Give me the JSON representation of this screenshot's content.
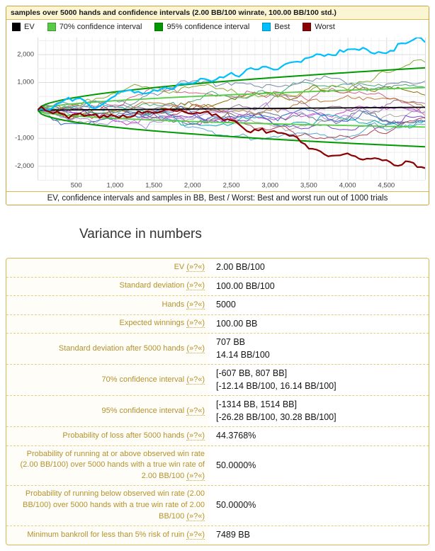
{
  "heading": "Variance in numbers",
  "chart_data": {
    "type": "line",
    "title": "samples over 5000 hands and confidence intervals (2.00 BB/100 winrate, 100.00 BB/100 std.)",
    "caption": "EV, confidence intervals and samples in BB, Best / Worst: Best and worst run out of 1000 trials",
    "winrate_bb100": 2.0,
    "std_bb100": 100.0,
    "hands": 5000,
    "trials": 1000,
    "xlim": [
      0,
      5000
    ],
    "ylim": [
      -2500,
      2600
    ],
    "x_tick_step": 500,
    "x_minor_step": 100,
    "y_tick_step": 1000,
    "y_minor_step": 500,
    "y_tick_labels": [
      2000,
      1000,
      -1000,
      -2000
    ],
    "x_tick_labels": [
      500,
      1000,
      1500,
      2000,
      2500,
      3000,
      3500,
      4000,
      4500
    ],
    "ev_line": {
      "label": "EV",
      "color": "#000000",
      "x": [
        0,
        5000
      ],
      "y": [
        0,
        100
      ]
    },
    "ci70": {
      "label": "70% confidence interval",
      "color": "#55cc44",
      "sigma": 1,
      "end_values": [
        -607,
        807
      ]
    },
    "ci95": {
      "label": "95% confidence interval",
      "color": "#009900",
      "sigma": 2,
      "end_values": [
        -1314,
        1514
      ]
    },
    "best": {
      "label": "Best",
      "color": "#00bfff",
      "end_value": 2430,
      "seed": 101
    },
    "worst": {
      "label": "Worst",
      "color": "#8b0000",
      "end_value": -2080,
      "seed": 202
    },
    "samples": {
      "count": 16,
      "seed_base": 11,
      "points_per_series": 100,
      "colors": [
        "#aaaaaa",
        "#cc44cc",
        "#8a6d00",
        "#00b0b0",
        "#7744cc",
        "#3366cc",
        "#cc6688",
        "#44aa77",
        "#997799",
        "#667788",
        "#bb7733",
        "#55aacc",
        "#aa4455",
        "#7788aa",
        "#88aa33",
        "#aa88dd"
      ]
    },
    "legend": [
      {
        "label": "EV",
        "color": "#000000"
      },
      {
        "label": "70% confidence interval",
        "color": "#55cc44"
      },
      {
        "label": "95% confidence interval",
        "color": "#009900"
      },
      {
        "label": "Best",
        "color": "#00bfff"
      },
      {
        "label": "Worst",
        "color": "#8b0000"
      }
    ]
  },
  "table": {
    "help_label": "(»?«)",
    "rows": [
      {
        "label": "EV",
        "value": "2.00 BB/100"
      },
      {
        "label": "Standard deviation",
        "value": "100.00 BB/100"
      },
      {
        "label": "Hands",
        "value": "5000"
      },
      {
        "label": "Expected winnings",
        "value": "100.00 BB"
      },
      {
        "label": "Standard deviation after 5000 hands",
        "value": [
          "707 BB",
          "14.14 BB/100"
        ]
      },
      {
        "label": "70% confidence interval",
        "value": [
          "[-607 BB, 807 BB]",
          "[-12.14 BB/100, 16.14 BB/100]"
        ]
      },
      {
        "label": "95% confidence interval",
        "value": [
          "[-1314 BB, 1514 BB]",
          "[-26.28 BB/100, 30.28 BB/100]"
        ]
      },
      {
        "label": "Probability of loss after 5000 hands",
        "value": "44.3768%"
      },
      {
        "label": "Probability of running at or above observed win rate (2.00 BB/100) over 5000 hands with a true win rate of 2.00 BB/100",
        "value": "50.0000%"
      },
      {
        "label": "Probability of running below observed win rate (2.00 BB/100) over 5000 hands with a true win rate of 2.00 BB/100",
        "value": "50.0000%"
      },
      {
        "label": "Minimum bankroll for less than 5% risk of ruin",
        "value": "7489 BB"
      }
    ]
  }
}
